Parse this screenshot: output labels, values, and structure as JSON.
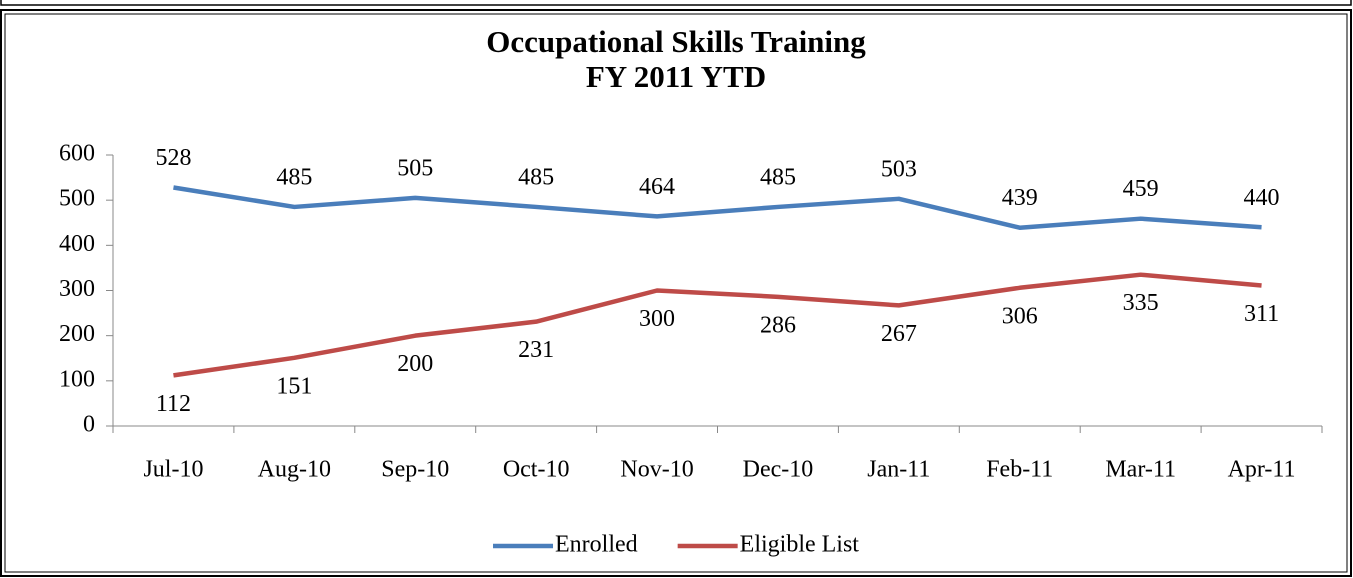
{
  "chart_data": {
    "type": "line",
    "title": "Occupational Skills Training",
    "subtitle": "FY 2011 YTD",
    "categories": [
      "Jul-10",
      "Aug-10",
      "Sep-10",
      "Oct-10",
      "Nov-10",
      "Dec-10",
      "Jan-11",
      "Feb-11",
      "Mar-11",
      "Apr-11"
    ],
    "series": [
      {
        "name": "Enrolled",
        "color": "#4a7ebb",
        "values": [
          528,
          485,
          505,
          485,
          464,
          485,
          503,
          439,
          459,
          440
        ]
      },
      {
        "name": "Eligible List",
        "color": "#be4b48",
        "values": [
          112,
          151,
          200,
          231,
          300,
          286,
          267,
          306,
          335,
          311
        ]
      }
    ],
    "ylim": [
      0,
      600
    ],
    "yticks": [
      0,
      100,
      200,
      300,
      400,
      500,
      600
    ],
    "grid": false,
    "legend": "bottom"
  }
}
